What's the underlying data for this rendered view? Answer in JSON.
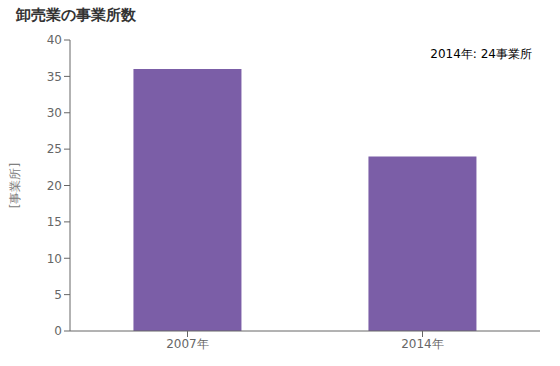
{
  "chart_data": {
    "type": "bar",
    "title": "卸売業の事業所数",
    "ylabel": "[事業所]",
    "annotation": "2014年: 24事業所",
    "categories": [
      "2007年",
      "2014年"
    ],
    "values": [
      36,
      24
    ],
    "color": "#7B5EA7",
    "ylim": [
      0,
      40
    ],
    "yticks": [
      0,
      5,
      10,
      15,
      20,
      25,
      30,
      35,
      40
    ],
    "grid": false
  }
}
